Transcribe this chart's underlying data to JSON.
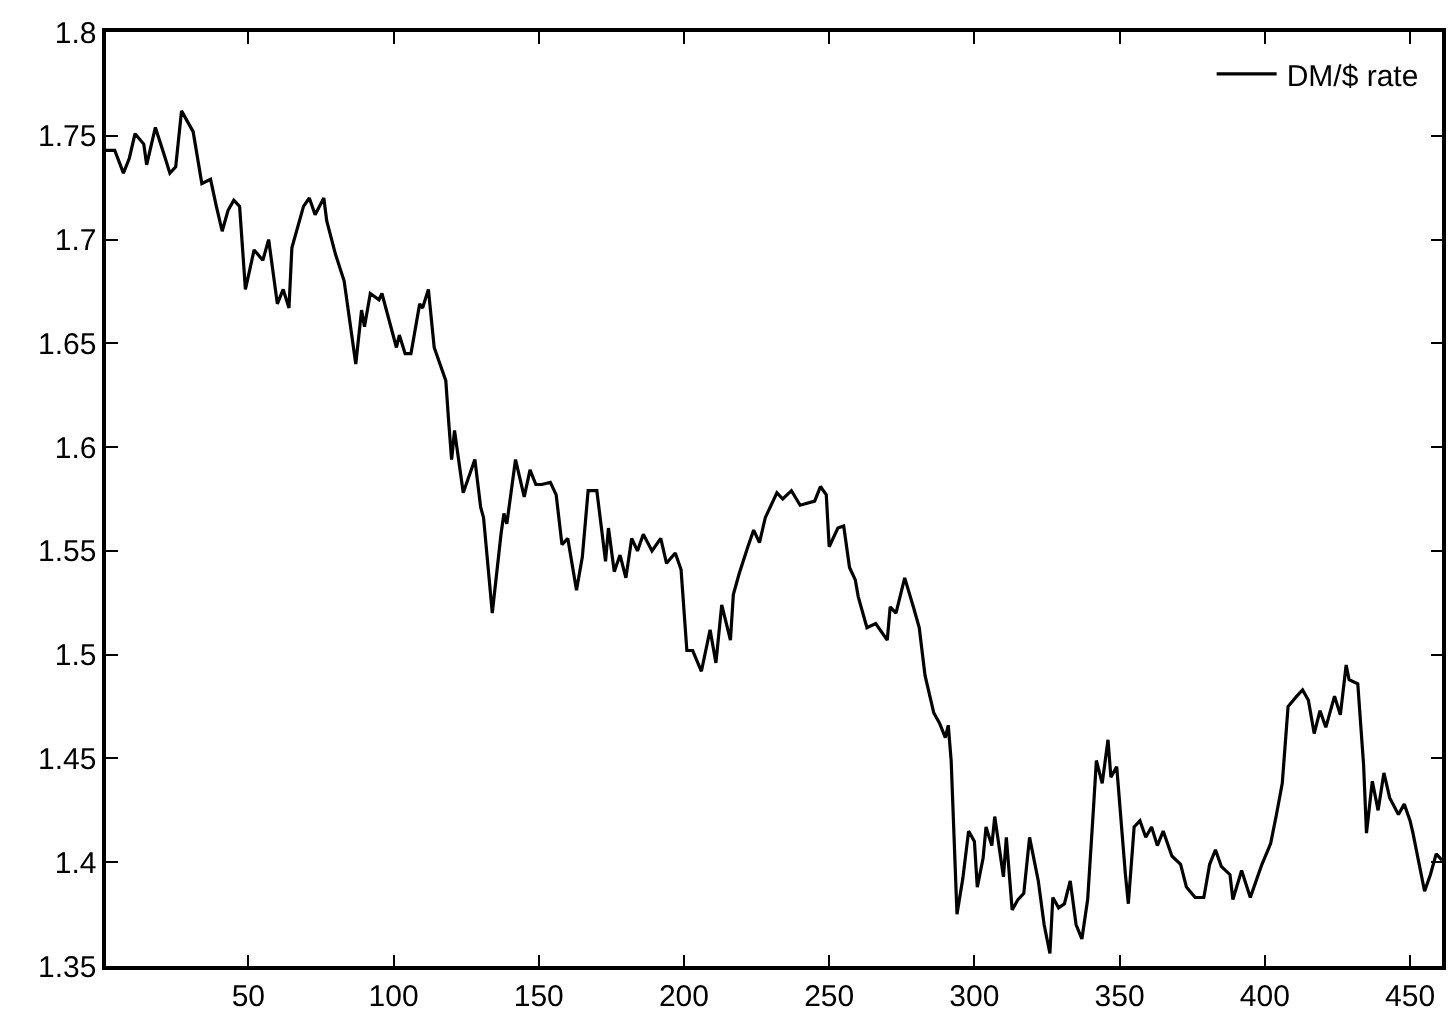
{
  "chart_data": {
    "type": "line",
    "x": [
      1,
      4,
      7,
      9,
      11,
      14,
      15,
      18,
      21,
      23,
      25,
      27,
      31,
      34,
      37,
      39,
      41,
      43,
      45,
      47,
      49,
      52,
      55,
      57,
      60,
      62,
      64,
      65,
      69,
      71,
      73,
      76,
      77,
      80,
      83,
      87,
      89,
      90,
      92,
      95,
      96,
      101,
      102,
      104,
      106,
      109,
      110,
      112,
      114,
      118,
      119,
      120,
      121,
      124,
      128,
      130,
      131,
      134,
      137,
      138,
      139,
      142,
      145,
      147,
      149,
      151,
      154,
      156,
      158,
      160,
      163,
      165,
      167,
      170,
      173,
      174,
      176,
      178,
      180,
      182,
      184,
      186,
      189,
      192,
      194,
      197,
      199,
      201,
      203,
      206,
      209,
      211,
      213,
      216,
      217,
      219,
      222,
      224,
      226,
      228,
      232,
      234,
      237,
      240,
      245,
      247,
      249,
      250,
      253,
      255,
      257,
      259,
      260,
      263,
      266,
      270,
      271,
      273,
      276,
      279,
      281,
      283,
      286,
      288,
      290,
      291,
      292,
      294,
      296,
      298,
      300,
      301,
      303,
      304,
      306,
      307,
      310,
      311,
      313,
      315,
      317,
      319,
      320,
      322,
      324,
      326,
      327,
      329,
      331,
      333,
      335,
      337,
      339,
      341,
      342,
      344,
      346,
      347,
      349,
      352,
      353,
      355,
      357,
      359,
      361,
      363,
      365,
      368,
      371,
      373,
      376,
      379,
      381,
      383,
      385,
      388,
      389,
      392,
      395,
      397,
      399,
      402,
      404,
      406,
      408,
      411,
      413,
      415,
      417,
      419,
      421,
      424,
      426,
      428,
      429,
      432,
      434,
      435,
      437,
      439,
      441,
      443,
      446,
      448,
      450,
      451,
      455,
      457,
      459,
      461
    ],
    "series": [
      {
        "name": "DM/$ rate",
        "color": "#000000",
        "values": [
          1.743,
          1.743,
          1.732,
          1.739,
          1.751,
          1.746,
          1.736,
          1.754,
          1.741,
          1.732,
          1.735,
          1.762,
          1.752,
          1.727,
          1.729,
          1.716,
          1.704,
          1.714,
          1.719,
          1.716,
          1.676,
          1.695,
          1.69,
          1.7,
          1.669,
          1.676,
          1.667,
          1.696,
          1.716,
          1.72,
          1.712,
          1.72,
          1.709,
          1.693,
          1.68,
          1.64,
          1.666,
          1.658,
          1.674,
          1.671,
          1.674,
          1.648,
          1.654,
          1.645,
          1.645,
          1.669,
          1.667,
          1.676,
          1.648,
          1.632,
          1.612,
          1.594,
          1.608,
          1.578,
          1.594,
          1.571,
          1.566,
          1.52,
          1.558,
          1.568,
          1.563,
          1.594,
          1.576,
          1.589,
          1.582,
          1.582,
          1.583,
          1.577,
          1.553,
          1.556,
          1.531,
          1.547,
          1.579,
          1.579,
          1.545,
          1.561,
          1.54,
          1.548,
          1.537,
          1.556,
          1.55,
          1.558,
          1.55,
          1.556,
          1.544,
          1.549,
          1.541,
          1.502,
          1.502,
          1.492,
          1.512,
          1.496,
          1.524,
          1.507,
          1.529,
          1.539,
          1.552,
          1.56,
          1.554,
          1.566,
          1.578,
          1.575,
          1.579,
          1.572,
          1.574,
          1.581,
          1.577,
          1.552,
          1.561,
          1.562,
          1.542,
          1.536,
          1.528,
          1.513,
          1.515,
          1.507,
          1.523,
          1.52,
          1.537,
          1.523,
          1.513,
          1.49,
          1.472,
          1.467,
          1.46,
          1.466,
          1.449,
          1.375,
          1.392,
          1.415,
          1.41,
          1.388,
          1.402,
          1.417,
          1.408,
          1.422,
          1.393,
          1.412,
          1.377,
          1.382,
          1.385,
          1.412,
          1.405,
          1.391,
          1.37,
          1.356,
          1.383,
          1.378,
          1.38,
          1.391,
          1.37,
          1.363,
          1.382,
          1.426,
          1.449,
          1.438,
          1.459,
          1.441,
          1.446,
          1.394,
          1.38,
          1.417,
          1.42,
          1.412,
          1.417,
          1.408,
          1.415,
          1.403,
          1.399,
          1.388,
          1.383,
          1.383,
          1.399,
          1.406,
          1.398,
          1.394,
          1.382,
          1.396,
          1.383,
          1.391,
          1.399,
          1.409,
          1.423,
          1.438,
          1.475,
          1.48,
          1.483,
          1.478,
          1.462,
          1.473,
          1.465,
          1.48,
          1.471,
          1.495,
          1.488,
          1.486,
          1.447,
          1.414,
          1.439,
          1.425,
          1.443,
          1.431,
          1.423,
          1.428,
          1.42,
          1.414,
          1.386,
          1.394,
          1.404,
          1.401
        ]
      }
    ],
    "xlim": [
      1,
      461
    ],
    "xticks": [
      50,
      100,
      150,
      200,
      250,
      300,
      350,
      400,
      450
    ],
    "ylim": [
      1.35,
      1.8
    ],
    "yticks": [
      1.35,
      1.4,
      1.45,
      1.5,
      1.55,
      1.6,
      1.65,
      1.7,
      1.75,
      1.8
    ],
    "grid": false,
    "legend": "top right",
    "marker": "none",
    "line_style": "solid"
  }
}
